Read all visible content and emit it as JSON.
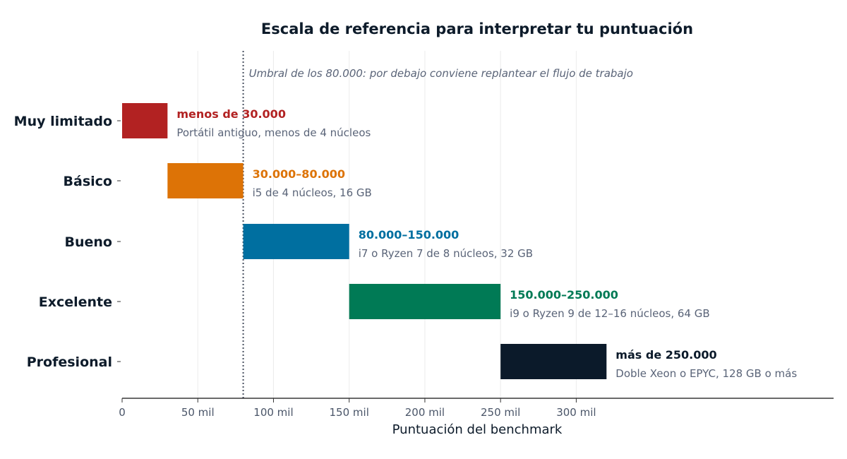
{
  "chart_data": {
    "type": "bar",
    "orientation": "horizontal",
    "title": "Escala de referencia para interpretar tu puntuación",
    "xlabel": "Puntuación del benchmark",
    "xlim": [
      0,
      470000
    ],
    "xticks": [
      0,
      50000,
      100000,
      150000,
      200000,
      250000,
      300000
    ],
    "xtick_labels": [
      "0",
      "50 mil",
      "100 mil",
      "150 mil",
      "200 mil",
      "250 mil",
      "300 mil"
    ],
    "grid": "vertical",
    "threshold": {
      "value": 80000,
      "label": "Umbral de los 80.000: por debajo conviene replantear el flujo de trabajo"
    },
    "categories": [
      "Muy limitado",
      "Básico",
      "Bueno",
      "Excelente",
      "Profesional"
    ],
    "bars": [
      {
        "category": "Muy limitado",
        "start": 0,
        "end": 30000,
        "color": "#b22222",
        "range_label": "menos de 30.000",
        "description": "Portátil antiguo, menos de 4 núcleos"
      },
      {
        "category": "Básico",
        "start": 30000,
        "end": 80000,
        "color": "#dd7306",
        "range_label": "30.000–80.000",
        "description": "i5 de 4 núcleos, 16 GB"
      },
      {
        "category": "Bueno",
        "start": 80000,
        "end": 150000,
        "color": "#006fa0",
        "range_label": "80.000–150.000",
        "description": "i7 o Ryzen 7 de 8 núcleos, 32 GB"
      },
      {
        "category": "Excelente",
        "start": 150000,
        "end": 250000,
        "color": "#007a55",
        "range_label": "150.000–250.000",
        "description": "i9 o Ryzen 9 de 12–16 núcleos, 64 GB"
      },
      {
        "category": "Profesional",
        "start": 250000,
        "end": 320000,
        "color": "#0b1a2a",
        "range_label": "más de 250.000",
        "description": "Doble Xeon o EPYC, 128 GB o más"
      }
    ]
  }
}
